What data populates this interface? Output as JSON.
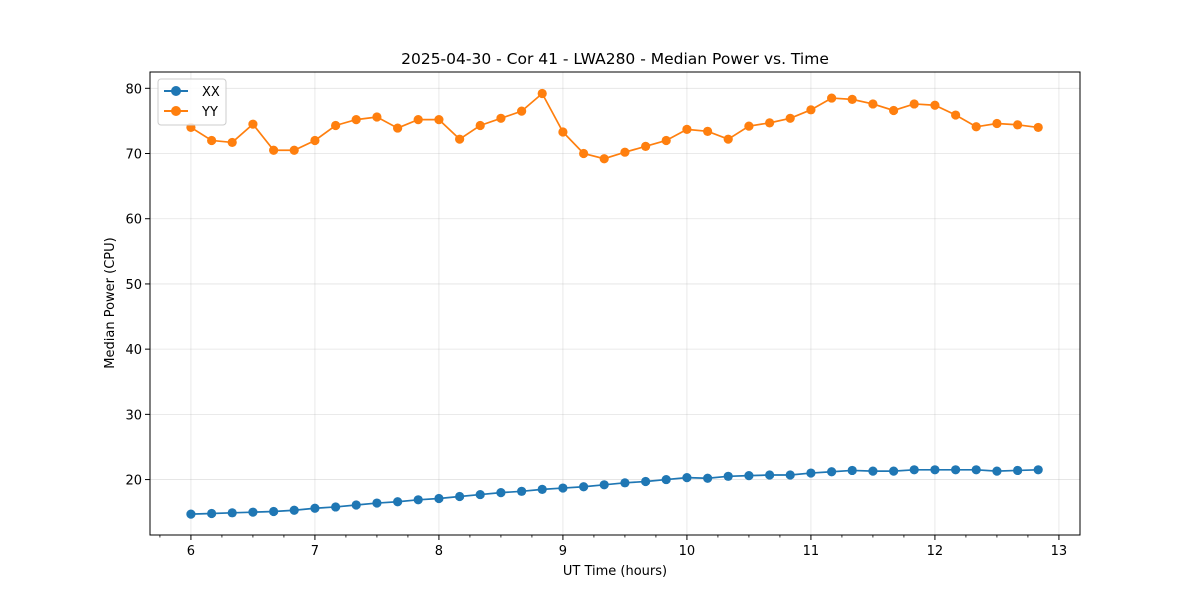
{
  "chart_data": {
    "type": "line",
    "title": "2025-04-30 - Cor 41 - LWA280 - Median Power vs. Time",
    "xlabel": "UT Time (hours)",
    "ylabel": "Median Power (CPU)",
    "xlim": [
      5.67,
      13.17
    ],
    "ylim": [
      11.5,
      82.5
    ],
    "xticks": [
      6,
      7,
      8,
      9,
      10,
      11,
      12,
      13
    ],
    "yticks": [
      20,
      30,
      40,
      50,
      60,
      70,
      80
    ],
    "minor_xtick_step": 0.25,
    "grid": true,
    "legend_position": "top-left",
    "x": [
      6.0,
      6.167,
      6.333,
      6.5,
      6.667,
      6.833,
      7.0,
      7.167,
      7.333,
      7.5,
      7.667,
      7.833,
      8.0,
      8.167,
      8.333,
      8.5,
      8.667,
      8.833,
      9.0,
      9.167,
      9.333,
      9.5,
      9.667,
      9.833,
      10.0,
      10.167,
      10.333,
      10.5,
      10.667,
      10.833,
      11.0,
      11.167,
      11.333,
      11.5,
      11.667,
      11.833,
      12.0,
      12.167,
      12.333,
      12.5,
      12.667,
      12.833
    ],
    "series": [
      {
        "name": "XX",
        "color": "#1f77b4",
        "values": [
          14.7,
          14.8,
          14.9,
          15.0,
          15.1,
          15.3,
          15.6,
          15.8,
          16.1,
          16.4,
          16.6,
          16.9,
          17.1,
          17.4,
          17.7,
          18.0,
          18.2,
          18.5,
          18.7,
          18.9,
          19.2,
          19.5,
          19.7,
          20.0,
          20.3,
          20.2,
          20.5,
          20.6,
          20.7,
          20.7,
          21.0,
          21.2,
          21.4,
          21.3,
          21.3,
          21.5,
          21.5,
          21.5,
          21.5,
          21.3,
          21.4,
          21.5
        ]
      },
      {
        "name": "YY",
        "color": "#ff7f0e",
        "values": [
          74.0,
          72.0,
          71.7,
          74.5,
          70.5,
          70.5,
          72.0,
          74.3,
          75.2,
          75.6,
          73.9,
          75.2,
          75.2,
          72.2,
          74.3,
          75.4,
          76.5,
          79.2,
          73.3,
          70.0,
          69.2,
          70.2,
          71.1,
          72.0,
          73.7,
          73.4,
          72.2,
          74.2,
          74.7,
          75.4,
          76.7,
          78.5,
          78.3,
          77.6,
          76.6,
          77.6,
          77.4,
          75.9,
          74.1,
          74.6,
          74.4,
          74.0
        ]
      }
    ]
  }
}
